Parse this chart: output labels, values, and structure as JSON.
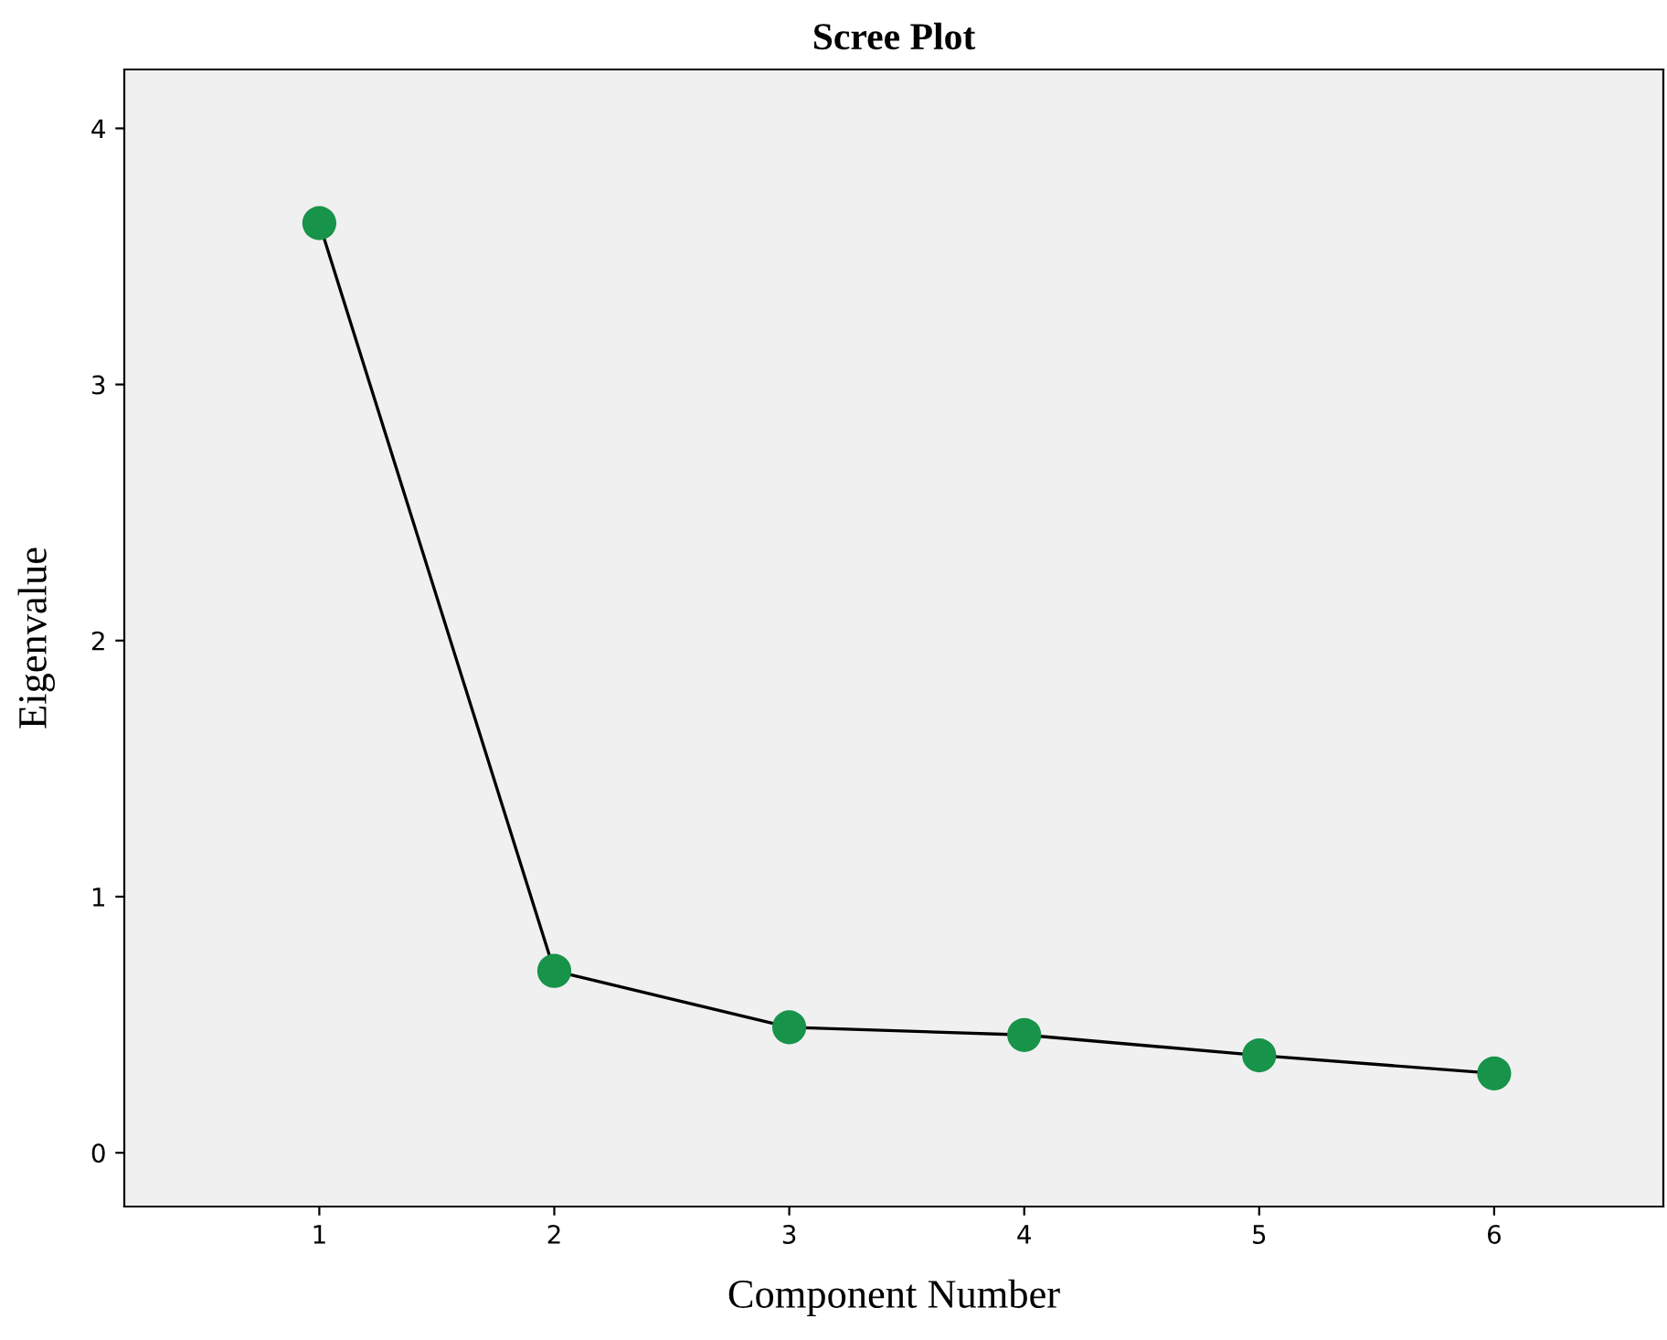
{
  "chart_data": {
    "type": "line",
    "title": "Scree Plot",
    "xlabel": "Component Number",
    "ylabel": "Eigenvalue",
    "x": [
      1,
      2,
      3,
      4,
      5,
      6
    ],
    "series": [
      {
        "color": "#17934a",
        "values": [
          3.63,
          0.71,
          0.49,
          0.46,
          0.38,
          0.31
        ]
      }
    ],
    "xlim": [
      0.17,
      6.72
    ],
    "xticks": [
      1,
      2,
      3,
      4,
      5,
      6
    ],
    "ylim": [
      -0.21,
      4.23
    ],
    "yticks": [
      0,
      1,
      2,
      3,
      4
    ],
    "grid": false,
    "legend": false,
    "marker": "circle",
    "line_style": "solid"
  }
}
